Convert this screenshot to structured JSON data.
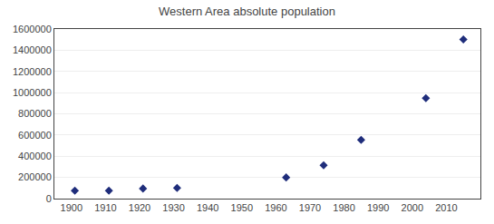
{
  "chart_data": {
    "type": "scatter",
    "title": "Western Area absolute population",
    "x": [
      1901,
      1911,
      1921,
      1931,
      1963,
      1974,
      1985,
      2004,
      2015
    ],
    "values": [
      75000,
      75000,
      95000,
      100000,
      200000,
      314340,
      554243,
      947122,
      1502000
    ],
    "color": "#1F2D7B",
    "marker": "diamond",
    "xlim": [
      1895,
      2020
    ],
    "xticks": [
      1900,
      1910,
      1920,
      1930,
      1940,
      1950,
      1960,
      1970,
      1980,
      1990,
      2000,
      2010
    ],
    "ylim": [
      0,
      1600000
    ],
    "yticks": [
      0,
      200000,
      400000,
      600000,
      800000,
      1000000,
      1200000,
      1400000,
      1600000
    ],
    "grid": true
  }
}
